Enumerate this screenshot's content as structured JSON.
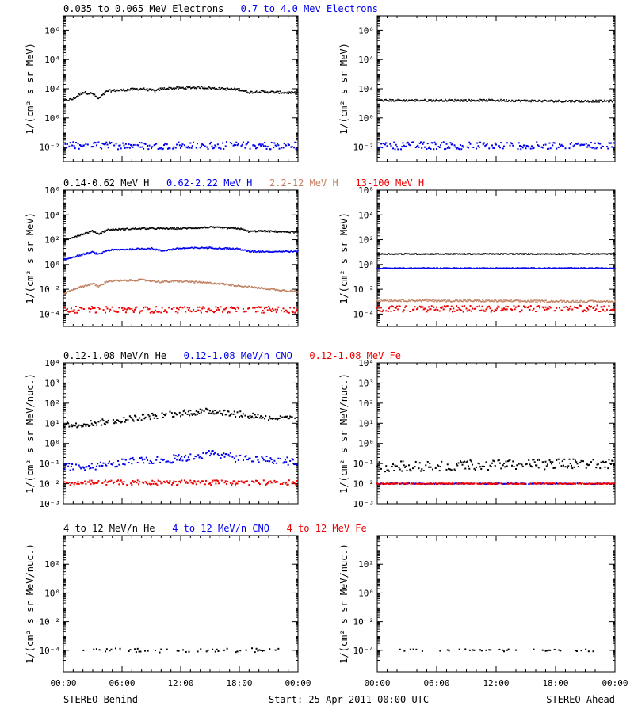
{
  "panels": [
    {
      "row": 0,
      "side": "behind",
      "legend": [
        {
          "text": "0.035 to 0.065 MeV Electrons",
          "color": "#000000"
        },
        {
          "text": "0.7 to 4.0 Mev Electrons",
          "color": "#0000ee"
        }
      ],
      "ylabel": "1/(cm² s sr MeV)",
      "yscale": "log",
      "ylim_exp": [
        -3,
        7
      ],
      "y_ticks_exp": [
        -2,
        0,
        2,
        4,
        6
      ],
      "xlim_hours": [
        0,
        24
      ],
      "x_ticks": [
        "00:00",
        "06:00",
        "12:00",
        "18:00",
        "00:00"
      ],
      "series": [
        {
          "color": "#000000",
          "style": "line",
          "scatter_dex": 0.08,
          "points": [
            [
              0,
              1.15
            ],
            [
              1,
              1.3
            ],
            [
              2,
              1.75
            ],
            [
              3,
              1.65
            ],
            [
              3.6,
              1.3
            ],
            [
              4.5,
              1.85
            ],
            [
              6,
              1.9
            ],
            [
              8,
              2.0
            ],
            [
              9.5,
              1.85
            ],
            [
              10,
              2.0
            ],
            [
              12,
              2.05
            ],
            [
              14,
              2.1
            ],
            [
              16,
              2.0
            ],
            [
              18,
              1.95
            ],
            [
              19,
              1.75
            ],
            [
              20,
              1.8
            ],
            [
              22,
              1.75
            ],
            [
              24,
              1.7
            ]
          ]
        },
        {
          "color": "#0000ee",
          "style": "scatter",
          "scatter_dex": 0.25,
          "points": [
            [
              0,
              -1.9
            ],
            [
              24,
              -1.9
            ]
          ]
        }
      ]
    },
    {
      "row": 0,
      "side": "ahead",
      "legend": [],
      "ylabel": "1/(cm² s sr MeV)",
      "yscale": "log",
      "ylim_exp": [
        -3,
        7
      ],
      "y_ticks_exp": [
        -2,
        0,
        2,
        4,
        6
      ],
      "xlim_hours": [
        0,
        24
      ],
      "x_ticks": [
        "00:00",
        "06:00",
        "12:00",
        "18:00",
        "00:00"
      ],
      "series": [
        {
          "color": "#000000",
          "style": "line",
          "scatter_dex": 0.07,
          "points": [
            [
              0,
              1.2
            ],
            [
              6,
              1.2
            ],
            [
              12,
              1.2
            ],
            [
              18,
              1.15
            ],
            [
              24,
              1.15
            ]
          ]
        },
        {
          "color": "#0000ee",
          "style": "scatter",
          "scatter_dex": 0.25,
          "points": [
            [
              0,
              -1.9
            ],
            [
              24,
              -1.9
            ]
          ]
        }
      ]
    },
    {
      "row": 1,
      "side": "behind",
      "legend": [
        {
          "text": "0.14-0.62 MeV H",
          "color": "#000000"
        },
        {
          "text": "0.62-2.22 MeV H",
          "color": "#0000ee"
        },
        {
          "text": "2.2-12 MeV H",
          "color": "#c08060"
        },
        {
          "text": "13-100 MeV H",
          "color": "#ee0000"
        }
      ],
      "ylabel": "1/(cm² s sr MeV)",
      "yscale": "log",
      "ylim_exp": [
        -5,
        6
      ],
      "y_ticks_exp": [
        -4,
        -2,
        0,
        2,
        4,
        6
      ],
      "xlim_hours": [
        0,
        24
      ],
      "x_ticks": [
        "00:00",
        "06:00",
        "12:00",
        "18:00",
        "00:00"
      ],
      "series": [
        {
          "color": "#000000",
          "style": "line",
          "scatter_dex": 0.06,
          "points": [
            [
              0,
              2.0
            ],
            [
              1,
              2.2
            ],
            [
              3,
              2.7
            ],
            [
              3.6,
              2.45
            ],
            [
              4.5,
              2.8
            ],
            [
              8,
              2.9
            ],
            [
              12,
              2.9
            ],
            [
              15,
              3.0
            ],
            [
              18,
              2.9
            ],
            [
              19,
              2.65
            ],
            [
              20,
              2.7
            ],
            [
              24,
              2.6
            ]
          ]
        },
        {
          "color": "#0000ee",
          "style": "line",
          "scatter_dex": 0.06,
          "points": [
            [
              0,
              0.35
            ],
            [
              1,
              0.6
            ],
            [
              3,
              1.0
            ],
            [
              3.6,
              0.8
            ],
            [
              4.5,
              1.15
            ],
            [
              9,
              1.3
            ],
            [
              10,
              1.1
            ],
            [
              12,
              1.3
            ],
            [
              15,
              1.35
            ],
            [
              18,
              1.25
            ],
            [
              19,
              1.05
            ],
            [
              24,
              1.05
            ]
          ]
        },
        {
          "color": "#c08060",
          "style": "line",
          "scatter_dex": 0.07,
          "points": [
            [
              0,
              -2.4
            ],
            [
              1,
              -2.0
            ],
            [
              3,
              -1.55
            ],
            [
              3.6,
              -1.8
            ],
            [
              4.5,
              -1.35
            ],
            [
              8,
              -1.25
            ],
            [
              10,
              -1.4
            ],
            [
              12,
              -1.35
            ],
            [
              16,
              -1.55
            ],
            [
              20,
              -1.9
            ],
            [
              24,
              -2.2
            ]
          ]
        },
        {
          "color": "#ee0000",
          "style": "scatter",
          "scatter_dex": 0.25,
          "points": [
            [
              0,
              -3.65
            ],
            [
              24,
              -3.65
            ]
          ]
        }
      ]
    },
    {
      "row": 1,
      "side": "ahead",
      "legend": [],
      "ylabel": "1/(cm² s sr MeV)",
      "yscale": "log",
      "ylim_exp": [
        -5,
        6
      ],
      "y_ticks_exp": [
        -4,
        -2,
        0,
        2,
        4,
        6
      ],
      "xlim_hours": [
        0,
        24
      ],
      "x_ticks": [
        "00:00",
        "06:00",
        "12:00",
        "18:00",
        "00:00"
      ],
      "series": [
        {
          "color": "#000000",
          "style": "line",
          "scatter_dex": 0.04,
          "points": [
            [
              0,
              0.85
            ],
            [
              24,
              0.85
            ]
          ]
        },
        {
          "color": "#0000ee",
          "style": "line",
          "scatter_dex": 0.04,
          "points": [
            [
              0,
              -0.3
            ],
            [
              24,
              -0.3
            ]
          ]
        },
        {
          "color": "#c08060",
          "style": "line",
          "scatter_dex": 0.08,
          "points": [
            [
              0,
              -2.9
            ],
            [
              24,
              -3.0
            ]
          ]
        },
        {
          "color": "#ee0000",
          "style": "scatter",
          "scatter_dex": 0.25,
          "points": [
            [
              0,
              -3.6
            ],
            [
              24,
              -3.55
            ]
          ]
        }
      ]
    },
    {
      "row": 2,
      "side": "behind",
      "legend": [
        {
          "text": "0.12-1.08 MeV/n He",
          "color": "#000000"
        },
        {
          "text": "0.12-1.08 MeV/n CNO",
          "color": "#0000ee"
        },
        {
          "text": "0.12-1.08 MeV Fe",
          "color": "#ee0000"
        }
      ],
      "ylabel": "1/(cm² s sr MeV/nuc.)",
      "yscale": "log",
      "ylim_exp": [
        -3,
        4
      ],
      "y_ticks_exp": [
        -3,
        -2,
        -1,
        0,
        1,
        2,
        3,
        4
      ],
      "xlim_hours": [
        0,
        24
      ],
      "x_ticks": [
        "00:00",
        "06:00",
        "12:00",
        "18:00",
        "00:00"
      ],
      "series": [
        {
          "color": "#000000",
          "style": "scatter",
          "scatter_dex": 0.15,
          "points": [
            [
              0,
              0.9
            ],
            [
              4,
              1.05
            ],
            [
              8,
              1.3
            ],
            [
              12,
              1.5
            ],
            [
              15,
              1.6
            ],
            [
              18,
              1.45
            ],
            [
              21,
              1.3
            ],
            [
              24,
              1.2
            ]
          ]
        },
        {
          "color": "#0000ee",
          "style": "scatter",
          "scatter_dex": 0.2,
          "points": [
            [
              0,
              -1.2
            ],
            [
              4,
              -1.1
            ],
            [
              8,
              -0.85
            ],
            [
              12,
              -0.75
            ],
            [
              15,
              -0.5
            ],
            [
              18,
              -0.75
            ],
            [
              24,
              -0.9
            ]
          ]
        },
        {
          "color": "#ee0000",
          "style": "scatter",
          "scatter_dex": 0.12,
          "points": [
            [
              0,
              -1.95
            ],
            [
              24,
              -1.95
            ]
          ]
        }
      ]
    },
    {
      "row": 2,
      "side": "ahead",
      "legend": [],
      "ylabel": "1/(cm² s sr MeV/nuc.)",
      "yscale": "log",
      "ylim_exp": [
        -3,
        4
      ],
      "y_ticks_exp": [
        -3,
        -2,
        -1,
        0,
        1,
        2,
        3,
        4
      ],
      "xlim_hours": [
        0,
        24
      ],
      "x_ticks": [
        "00:00",
        "06:00",
        "12:00",
        "18:00",
        "00:00"
      ],
      "series": [
        {
          "color": "#000000",
          "style": "scatter",
          "scatter_dex": 0.25,
          "points": [
            [
              0,
              -1.15
            ],
            [
              24,
              -1.0
            ]
          ]
        },
        {
          "color": "#0000ee",
          "style": "scatter",
          "scatter_dex": 0.02,
          "points": [
            [
              0,
              -2.0
            ],
            [
              24,
              -2.0
            ]
          ]
        },
        {
          "color": "#ee0000",
          "style": "scatter",
          "scatter_dex": 0.02,
          "points": [
            [
              0,
              -2.0
            ],
            [
              24,
              -2.0
            ]
          ]
        }
      ]
    },
    {
      "row": 3,
      "side": "behind",
      "legend": [
        {
          "text": "4 to 12 MeV/n He",
          "color": "#000000"
        },
        {
          "text": "4 to 12 MeV/n CNO",
          "color": "#0000ee"
        },
        {
          "text": "4 to 12 MeV Fe",
          "color": "#ee0000"
        }
      ],
      "ylabel": "1/(cm² s sr MeV/nuc.)",
      "yscale": "log",
      "ylim_exp": [
        -5.5,
        4
      ],
      "y_ticks_exp": [
        -4,
        -2,
        0,
        2
      ],
      "xlim_hours": [
        0,
        24
      ],
      "x_ticks": [
        "00:00",
        "06:00",
        "12:00",
        "18:00",
        "00:00"
      ],
      "series": [
        {
          "color": "#000000",
          "style": "sparse",
          "scatter_dex": 0.15,
          "points": [
            [
              1,
              -4.0
            ],
            [
              22,
              -4.0
            ]
          ]
        }
      ]
    },
    {
      "row": 3,
      "side": "ahead",
      "legend": [],
      "ylabel": "1/(cm² s sr MeV/nuc.)",
      "yscale": "log",
      "ylim_exp": [
        -5.5,
        4
      ],
      "y_ticks_exp": [
        -4,
        -2,
        0,
        2
      ],
      "xlim_hours": [
        0,
        24
      ],
      "x_ticks": [
        "00:00",
        "06:00",
        "12:00",
        "18:00",
        "00:00"
      ],
      "series": [
        {
          "color": "#000000",
          "style": "sparse",
          "scatter_dex": 0.08,
          "points": [
            [
              2,
              -4.0
            ],
            [
              22,
              -4.0
            ]
          ]
        }
      ]
    }
  ],
  "footer": {
    "left": "STEREO Behind",
    "center": "Start: 25-Apr-2011 00:00 UTC",
    "right": "STEREO Ahead"
  },
  "chart_data": {
    "type": "scatter",
    "description_units": "y values given as log10 of flux",
    "xlim": [
      "00:00",
      "24:00"
    ],
    "yscale": "log"
  }
}
